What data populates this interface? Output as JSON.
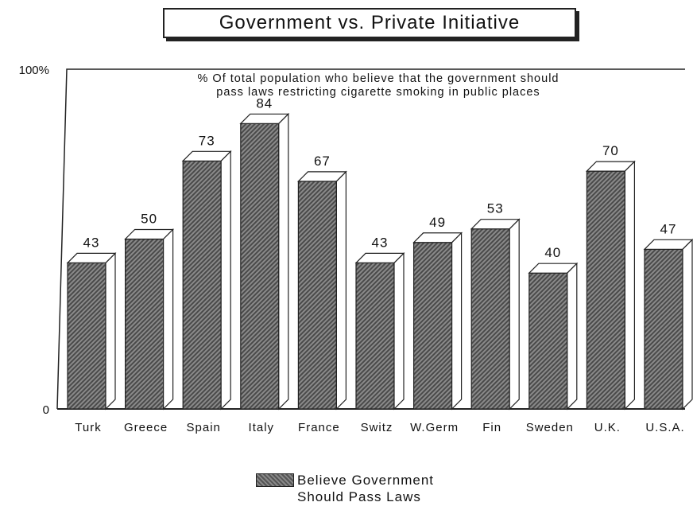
{
  "chart_data": {
    "type": "bar",
    "title": "Government vs. Private Initiative",
    "subtitle_line1": "% Of total population who believe that the government should",
    "subtitle_line2": "pass laws restricting cigarette smoking in public places",
    "categories": [
      "Turk",
      "Greece",
      "Spain",
      "Italy",
      "France",
      "Switz",
      "W.Germ",
      "Fin",
      "Sweden",
      "U.K.",
      "U.S.A."
    ],
    "series": [
      {
        "name": "Believe Government Should Pass Laws",
        "values": [
          43,
          50,
          73,
          84,
          67,
          43,
          49,
          53,
          40,
          70,
          47
        ]
      }
    ],
    "data_labels": [
      "43",
      "50",
      "73",
      "84",
      "67",
      "43",
      "49",
      "53",
      "40",
      "70",
      "47"
    ],
    "y_ticks": [
      "0",
      "100%"
    ],
    "ylim": [
      0,
      100
    ],
    "xlabel": "",
    "ylabel": "",
    "grid": false,
    "legend_position": "bottom-center",
    "legend_line1": "Believe Government",
    "legend_line2": "Should Pass Laws",
    "colors": {
      "bar_dark": "#555555",
      "bar_light": "#8a8a8a",
      "outline": "#222222"
    }
  }
}
